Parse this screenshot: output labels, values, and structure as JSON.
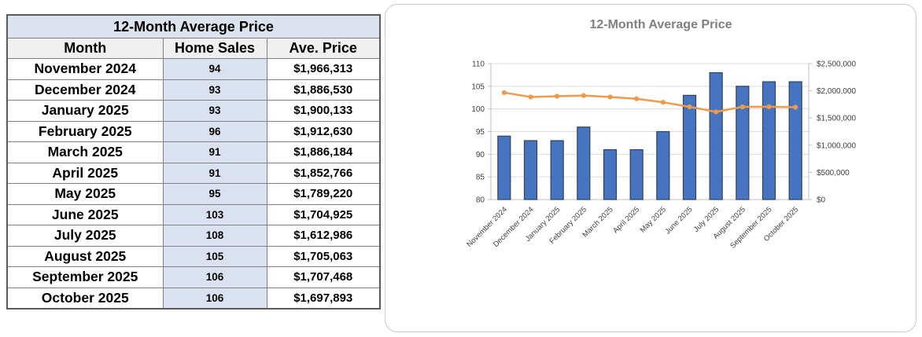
{
  "table": {
    "title": "12-Month Average Price",
    "columns": [
      "Month",
      "Home Sales",
      "Ave. Price"
    ],
    "rows": [
      {
        "month": "November 2024",
        "sales": "94",
        "price": "$1,966,313"
      },
      {
        "month": "December 2024",
        "sales": "93",
        "price": "$1,886,530"
      },
      {
        "month": "January 2025",
        "sales": "93",
        "price": "$1,900,133"
      },
      {
        "month": "February 2025",
        "sales": "96",
        "price": "$1,912,630"
      },
      {
        "month": "March 2025",
        "sales": "91",
        "price": "$1,886,184"
      },
      {
        "month": "April 2025",
        "sales": "91",
        "price": "$1,852,766"
      },
      {
        "month": "May 2025",
        "sales": "95",
        "price": "$1,789,220"
      },
      {
        "month": "June 2025",
        "sales": "103",
        "price": "$1,704,925"
      },
      {
        "month": "July 2025",
        "sales": "108",
        "price": "$1,612,986"
      },
      {
        "month": "August 2025",
        "sales": "105",
        "price": "$1,705,063"
      },
      {
        "month": "September 2025",
        "sales": "106",
        "price": "$1,707,468"
      },
      {
        "month": "October 2025",
        "sales": "106",
        "price": "$1,697,893"
      }
    ]
  },
  "chart_data": {
    "type": "bar",
    "title": "12-Month Average Price",
    "categories": [
      "November 2024",
      "December 2024",
      "January 2025",
      "February 2025",
      "March 2025",
      "April 2025",
      "May 2025",
      "June 2025",
      "July 2025",
      "August 2025",
      "September 2025",
      "October 2025"
    ],
    "series": [
      {
        "name": "Home Sales",
        "type": "bar",
        "axis": "left",
        "values": [
          94,
          93,
          93,
          96,
          91,
          91,
          95,
          103,
          108,
          105,
          106,
          106
        ]
      },
      {
        "name": "Ave. Price",
        "type": "line",
        "axis": "right",
        "values": [
          1966313,
          1886530,
          1900133,
          1912630,
          1886184,
          1852766,
          1789220,
          1704925,
          1612986,
          1705063,
          1707468,
          1697893
        ]
      }
    ],
    "left_axis": {
      "min": 80,
      "max": 110,
      "step": 5
    },
    "right_axis": {
      "min": 0,
      "max": 2500000,
      "step": 500000,
      "prefix": "$"
    },
    "legend": "none",
    "grid": true,
    "colors": {
      "bar_fill": "#4674c1",
      "bar_border": "#31435c",
      "line": "#ee9a49",
      "title": "#7f7f7f",
      "axis_text": "#404040",
      "axis_line": "#bfbfbf",
      "gridline": "#dcdcdc"
    }
  }
}
